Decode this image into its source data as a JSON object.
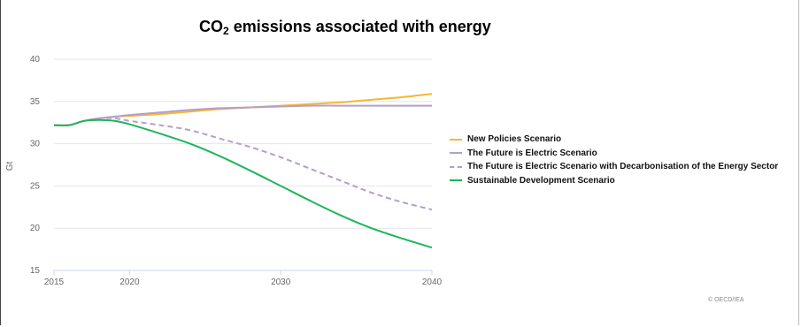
{
  "chart_data": {
    "type": "line",
    "title_main": "CO",
    "title_sub": "2",
    "title_rest": " emissions associated with energy",
    "ylabel": "Gt",
    "ylim": [
      15,
      40
    ],
    "xlim": [
      2015,
      2040
    ],
    "yticks": [
      "15",
      "20",
      "25",
      "30",
      "35",
      "40"
    ],
    "xticks": [
      "2015",
      "2020",
      "2030",
      "2040"
    ],
    "grid": true,
    "legend_position": "right",
    "credit": "© OECD/IEA",
    "series": [
      {
        "name": "New Policies Scenario",
        "color": "#f5b731",
        "dash": false,
        "x": [
          2015,
          2016,
          2017,
          2018,
          2019,
          2020,
          2022,
          2024,
          2026,
          2028,
          2030,
          2032,
          2034,
          2036,
          2038,
          2040
        ],
        "y": [
          32.2,
          32.2,
          32.7,
          33.0,
          33.2,
          33.3,
          33.5,
          33.8,
          34.1,
          34.3,
          34.5,
          34.7,
          34.9,
          35.2,
          35.5,
          35.9
        ]
      },
      {
        "name": "The Future is Electric Scenario",
        "color": "#b59fc8",
        "dash": false,
        "x": [
          2015,
          2016,
          2017,
          2018,
          2019,
          2020,
          2022,
          2024,
          2026,
          2028,
          2030,
          2032,
          2034,
          2036,
          2038,
          2040
        ],
        "y": [
          32.2,
          32.2,
          32.7,
          33.0,
          33.2,
          33.4,
          33.7,
          34.0,
          34.2,
          34.3,
          34.4,
          34.5,
          34.5,
          34.5,
          34.5,
          34.5
        ]
      },
      {
        "name": "The Future is Electric Scenario with Decarbonisation of the Energy Sector",
        "color": "#b59fc8",
        "dash": true,
        "x": [
          2015,
          2016,
          2017,
          2018,
          2019,
          2020,
          2022,
          2024,
          2026,
          2028,
          2030,
          2032,
          2034,
          2036,
          2038,
          2040
        ],
        "y": [
          32.2,
          32.2,
          32.7,
          33.0,
          33.0,
          32.7,
          32.2,
          31.6,
          30.6,
          29.6,
          28.4,
          27.0,
          25.6,
          24.2,
          23.1,
          22.2
        ]
      },
      {
        "name": "Sustainable Development Scenario",
        "color": "#1fb55a",
        "dash": false,
        "x": [
          2015,
          2016,
          2017,
          2018,
          2019,
          2020,
          2022,
          2024,
          2026,
          2028,
          2030,
          2032,
          2034,
          2036,
          2038,
          2040
        ],
        "y": [
          32.2,
          32.2,
          32.7,
          32.8,
          32.7,
          32.3,
          31.2,
          30.0,
          28.5,
          26.8,
          25.0,
          23.2,
          21.5,
          20.0,
          18.8,
          17.7
        ]
      }
    ]
  }
}
